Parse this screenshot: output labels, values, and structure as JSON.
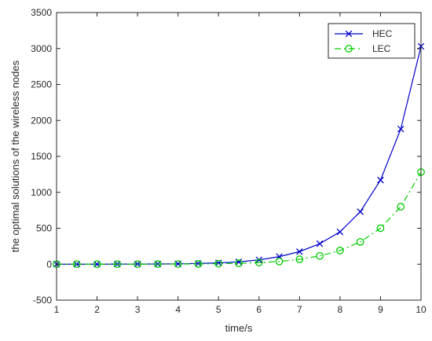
{
  "chart_data": {
    "type": "line",
    "title": "",
    "xlabel": "time/s",
    "ylabel": "the optimal solutions of the wireless nodes",
    "xlim": [
      1,
      10
    ],
    "ylim": [
      -500,
      3500
    ],
    "xticks": [
      1,
      2,
      3,
      4,
      5,
      6,
      7,
      8,
      9,
      10
    ],
    "yticks": [
      -500,
      0,
      500,
      1000,
      1500,
      2000,
      2500,
      3000,
      3500
    ],
    "grid": false,
    "legend_position": "top-right",
    "x": [
      1,
      1.5,
      2,
      2.5,
      3,
      3.5,
      4,
      4.5,
      5,
      5.5,
      6,
      6.5,
      7,
      7.5,
      8,
      8.5,
      9,
      9.5,
      10
    ],
    "series": [
      {
        "name": "HEC",
        "color": "#0000cc",
        "line_style": "solid",
        "marker": "x",
        "values": [
          0,
          0,
          0,
          1,
          2,
          3,
          5,
          10,
          18,
          32,
          60,
          105,
          175,
          285,
          450,
          730,
          1170,
          1880,
          3030
        ]
      },
      {
        "name": "LEC",
        "color": "#00cc00",
        "line_style": "dash-dot",
        "marker": "o",
        "values": [
          0,
          0,
          0,
          0,
          0,
          1,
          2,
          4,
          7,
          12,
          22,
          38,
          68,
          115,
          190,
          310,
          500,
          800,
          1280
        ]
      }
    ]
  }
}
